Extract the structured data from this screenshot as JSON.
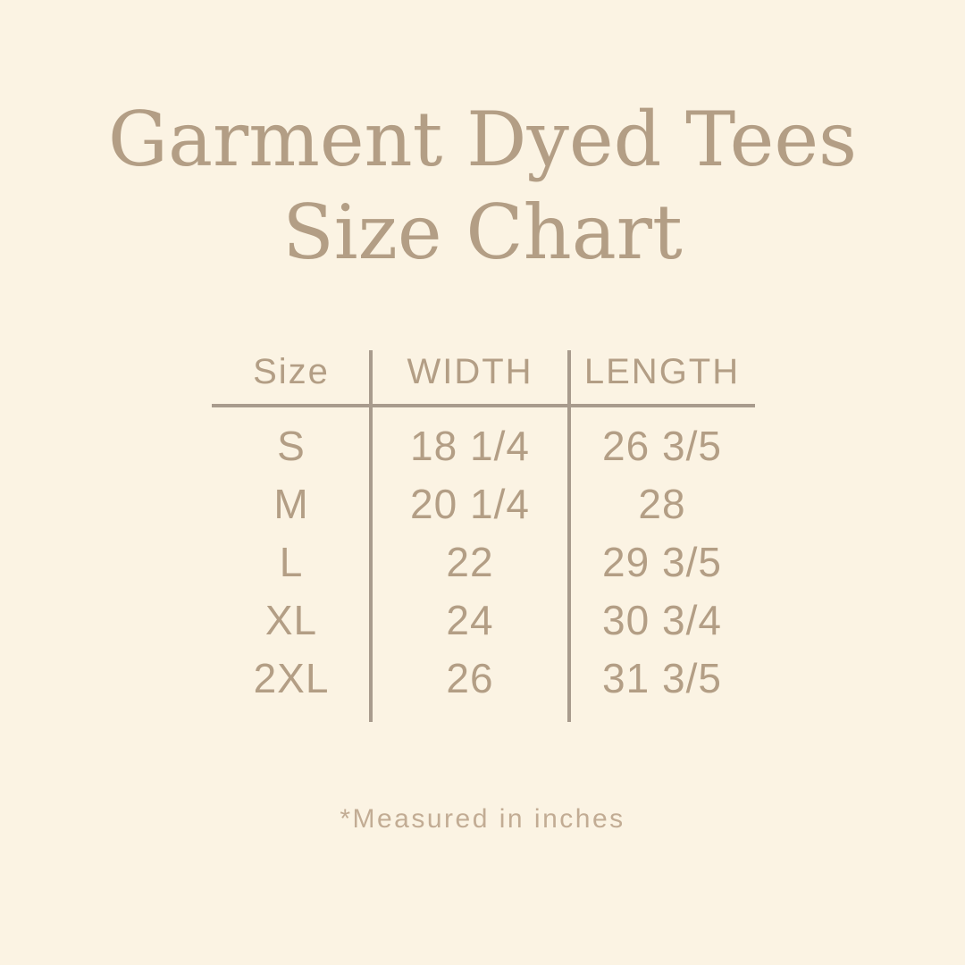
{
  "colors": {
    "bg_color": "#FBF3E3",
    "text_color": "#B39E85",
    "line_color": "#A89B8D",
    "footnote_color": "#C2AC94"
  },
  "title": {
    "line1": "Garment Dyed Tees",
    "line2": "Size Chart"
  },
  "chart_data": {
    "type": "table",
    "title": "Garment Dyed Tees Size Chart",
    "columns": [
      "Size",
      "WIDTH",
      "LENGTH"
    ],
    "rows": [
      {
        "size": "S",
        "width": "18 1/4",
        "length": "26 3/5"
      },
      {
        "size": "M",
        "width": "20 1/4",
        "length": "28"
      },
      {
        "size": "L",
        "width": "22",
        "length": "29 3/5"
      },
      {
        "size": "XL",
        "width": "24",
        "length": "30 3/4"
      },
      {
        "size": "2XL",
        "width": "26",
        "length": "31 3/5"
      }
    ],
    "footnote": "*Measured in inches",
    "layout": {
      "grid": "vertical dividers between 3 columns, horizontal rule under header"
    }
  },
  "footnote": "*Measured in inches"
}
